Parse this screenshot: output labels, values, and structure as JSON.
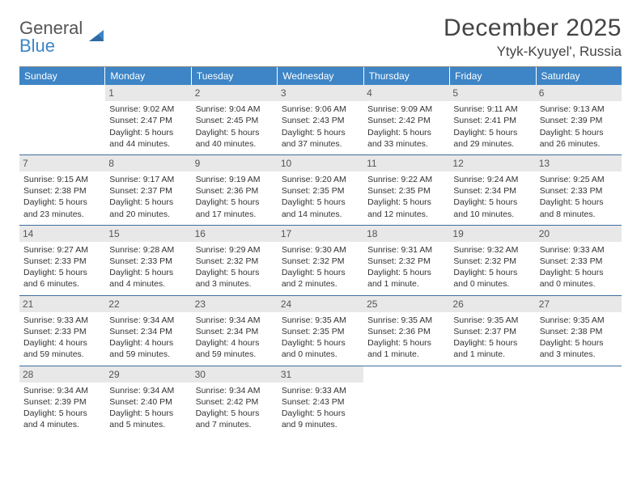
{
  "logo": {
    "line1": "General",
    "line2": "Blue"
  },
  "colors": {
    "header_bg": "#3d85c6",
    "grid_line": "#3d6ea0",
    "daynum_bg": "#e8e8e8",
    "text": "#333333",
    "logo_gray": "#555555",
    "logo_blue": "#3d85c6"
  },
  "title": "December 2025",
  "location": "Ytyk-Kyuyel', Russia",
  "day_headers": [
    "Sunday",
    "Monday",
    "Tuesday",
    "Wednesday",
    "Thursday",
    "Friday",
    "Saturday"
  ],
  "weeks": [
    [
      {
        "blank": true
      },
      {
        "day": "1",
        "sunrise": "Sunrise: 9:02 AM",
        "sunset": "Sunset: 2:47 PM",
        "daylight1": "Daylight: 5 hours",
        "daylight2": "and 44 minutes."
      },
      {
        "day": "2",
        "sunrise": "Sunrise: 9:04 AM",
        "sunset": "Sunset: 2:45 PM",
        "daylight1": "Daylight: 5 hours",
        "daylight2": "and 40 minutes."
      },
      {
        "day": "3",
        "sunrise": "Sunrise: 9:06 AM",
        "sunset": "Sunset: 2:43 PM",
        "daylight1": "Daylight: 5 hours",
        "daylight2": "and 37 minutes."
      },
      {
        "day": "4",
        "sunrise": "Sunrise: 9:09 AM",
        "sunset": "Sunset: 2:42 PM",
        "daylight1": "Daylight: 5 hours",
        "daylight2": "and 33 minutes."
      },
      {
        "day": "5",
        "sunrise": "Sunrise: 9:11 AM",
        "sunset": "Sunset: 2:41 PM",
        "daylight1": "Daylight: 5 hours",
        "daylight2": "and 29 minutes."
      },
      {
        "day": "6",
        "sunrise": "Sunrise: 9:13 AM",
        "sunset": "Sunset: 2:39 PM",
        "daylight1": "Daylight: 5 hours",
        "daylight2": "and 26 minutes."
      }
    ],
    [
      {
        "day": "7",
        "sunrise": "Sunrise: 9:15 AM",
        "sunset": "Sunset: 2:38 PM",
        "daylight1": "Daylight: 5 hours",
        "daylight2": "and 23 minutes."
      },
      {
        "day": "8",
        "sunrise": "Sunrise: 9:17 AM",
        "sunset": "Sunset: 2:37 PM",
        "daylight1": "Daylight: 5 hours",
        "daylight2": "and 20 minutes."
      },
      {
        "day": "9",
        "sunrise": "Sunrise: 9:19 AM",
        "sunset": "Sunset: 2:36 PM",
        "daylight1": "Daylight: 5 hours",
        "daylight2": "and 17 minutes."
      },
      {
        "day": "10",
        "sunrise": "Sunrise: 9:20 AM",
        "sunset": "Sunset: 2:35 PM",
        "daylight1": "Daylight: 5 hours",
        "daylight2": "and 14 minutes."
      },
      {
        "day": "11",
        "sunrise": "Sunrise: 9:22 AM",
        "sunset": "Sunset: 2:35 PM",
        "daylight1": "Daylight: 5 hours",
        "daylight2": "and 12 minutes."
      },
      {
        "day": "12",
        "sunrise": "Sunrise: 9:24 AM",
        "sunset": "Sunset: 2:34 PM",
        "daylight1": "Daylight: 5 hours",
        "daylight2": "and 10 minutes."
      },
      {
        "day": "13",
        "sunrise": "Sunrise: 9:25 AM",
        "sunset": "Sunset: 2:33 PM",
        "daylight1": "Daylight: 5 hours",
        "daylight2": "and 8 minutes."
      }
    ],
    [
      {
        "day": "14",
        "sunrise": "Sunrise: 9:27 AM",
        "sunset": "Sunset: 2:33 PM",
        "daylight1": "Daylight: 5 hours",
        "daylight2": "and 6 minutes."
      },
      {
        "day": "15",
        "sunrise": "Sunrise: 9:28 AM",
        "sunset": "Sunset: 2:33 PM",
        "daylight1": "Daylight: 5 hours",
        "daylight2": "and 4 minutes."
      },
      {
        "day": "16",
        "sunrise": "Sunrise: 9:29 AM",
        "sunset": "Sunset: 2:32 PM",
        "daylight1": "Daylight: 5 hours",
        "daylight2": "and 3 minutes."
      },
      {
        "day": "17",
        "sunrise": "Sunrise: 9:30 AM",
        "sunset": "Sunset: 2:32 PM",
        "daylight1": "Daylight: 5 hours",
        "daylight2": "and 2 minutes."
      },
      {
        "day": "18",
        "sunrise": "Sunrise: 9:31 AM",
        "sunset": "Sunset: 2:32 PM",
        "daylight1": "Daylight: 5 hours",
        "daylight2": "and 1 minute."
      },
      {
        "day": "19",
        "sunrise": "Sunrise: 9:32 AM",
        "sunset": "Sunset: 2:32 PM",
        "daylight1": "Daylight: 5 hours",
        "daylight2": "and 0 minutes."
      },
      {
        "day": "20",
        "sunrise": "Sunrise: 9:33 AM",
        "sunset": "Sunset: 2:33 PM",
        "daylight1": "Daylight: 5 hours",
        "daylight2": "and 0 minutes."
      }
    ],
    [
      {
        "day": "21",
        "sunrise": "Sunrise: 9:33 AM",
        "sunset": "Sunset: 2:33 PM",
        "daylight1": "Daylight: 4 hours",
        "daylight2": "and 59 minutes."
      },
      {
        "day": "22",
        "sunrise": "Sunrise: 9:34 AM",
        "sunset": "Sunset: 2:34 PM",
        "daylight1": "Daylight: 4 hours",
        "daylight2": "and 59 minutes."
      },
      {
        "day": "23",
        "sunrise": "Sunrise: 9:34 AM",
        "sunset": "Sunset: 2:34 PM",
        "daylight1": "Daylight: 4 hours",
        "daylight2": "and 59 minutes."
      },
      {
        "day": "24",
        "sunrise": "Sunrise: 9:35 AM",
        "sunset": "Sunset: 2:35 PM",
        "daylight1": "Daylight: 5 hours",
        "daylight2": "and 0 minutes."
      },
      {
        "day": "25",
        "sunrise": "Sunrise: 9:35 AM",
        "sunset": "Sunset: 2:36 PM",
        "daylight1": "Daylight: 5 hours",
        "daylight2": "and 1 minute."
      },
      {
        "day": "26",
        "sunrise": "Sunrise: 9:35 AM",
        "sunset": "Sunset: 2:37 PM",
        "daylight1": "Daylight: 5 hours",
        "daylight2": "and 1 minute."
      },
      {
        "day": "27",
        "sunrise": "Sunrise: 9:35 AM",
        "sunset": "Sunset: 2:38 PM",
        "daylight1": "Daylight: 5 hours",
        "daylight2": "and 3 minutes."
      }
    ],
    [
      {
        "day": "28",
        "sunrise": "Sunrise: 9:34 AM",
        "sunset": "Sunset: 2:39 PM",
        "daylight1": "Daylight: 5 hours",
        "daylight2": "and 4 minutes."
      },
      {
        "day": "29",
        "sunrise": "Sunrise: 9:34 AM",
        "sunset": "Sunset: 2:40 PM",
        "daylight1": "Daylight: 5 hours",
        "daylight2": "and 5 minutes."
      },
      {
        "day": "30",
        "sunrise": "Sunrise: 9:34 AM",
        "sunset": "Sunset: 2:42 PM",
        "daylight1": "Daylight: 5 hours",
        "daylight2": "and 7 minutes."
      },
      {
        "day": "31",
        "sunrise": "Sunrise: 9:33 AM",
        "sunset": "Sunset: 2:43 PM",
        "daylight1": "Daylight: 5 hours",
        "daylight2": "and 9 minutes."
      },
      {
        "blank": true
      },
      {
        "blank": true
      },
      {
        "blank": true
      }
    ]
  ]
}
